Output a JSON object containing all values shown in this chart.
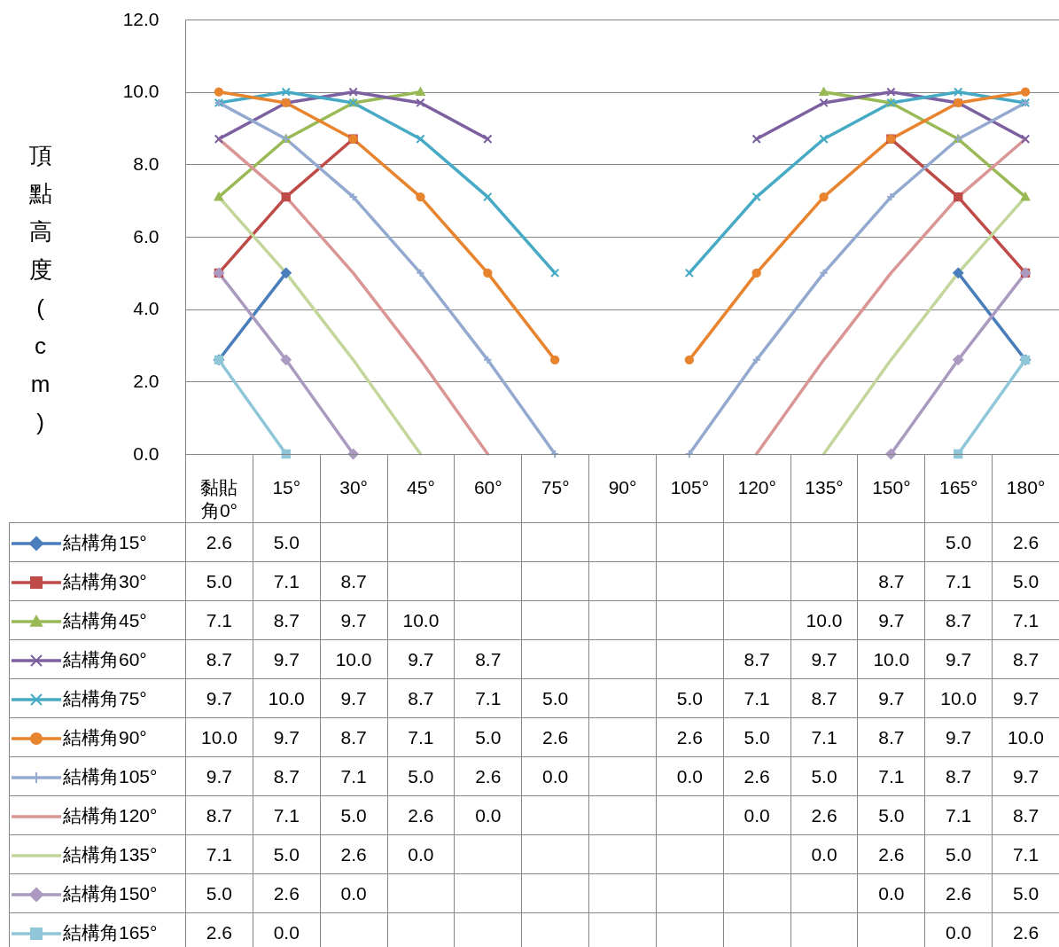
{
  "chart_data": {
    "type": "line",
    "ylabel": "頂點高度(cm)",
    "categories": [
      "黏貼角0°",
      "15°",
      "30°",
      "45°",
      "60°",
      "75°",
      "90°",
      "105°",
      "120°",
      "135°",
      "150°",
      "165°",
      "180°"
    ],
    "ylim": [
      0,
      12
    ],
    "yticks": [
      {
        "value": 0,
        "label": "0.0"
      },
      {
        "value": 2,
        "label": "2.0"
      },
      {
        "value": 4,
        "label": "4.0"
      },
      {
        "value": 6,
        "label": "6.0"
      },
      {
        "value": 8,
        "label": "8.0"
      },
      {
        "value": 10,
        "label": "10.0"
      },
      {
        "value": 12,
        "label": "12.0"
      }
    ],
    "grid": "y",
    "legend": "bottom left",
    "series": [
      {
        "name": "結構角15°",
        "color": "#4a7ebb",
        "marker": "diamond",
        "values": [
          2.6,
          5.0,
          null,
          null,
          null,
          null,
          null,
          null,
          null,
          null,
          null,
          5.0,
          2.6
        ],
        "value_labels": [
          "2.6",
          "5.0",
          null,
          null,
          null,
          null,
          null,
          null,
          null,
          null,
          null,
          "5.0",
          "2.6"
        ]
      },
      {
        "name": "結構角30°",
        "color": "#be4b48",
        "marker": "square",
        "values": [
          5.0,
          7.1,
          8.7,
          null,
          null,
          null,
          null,
          null,
          null,
          null,
          8.7,
          7.1,
          5.0
        ],
        "value_labels": [
          "5.0",
          "7.1",
          "8.7",
          null,
          null,
          null,
          null,
          null,
          null,
          null,
          "8.7",
          "7.1",
          "5.0"
        ]
      },
      {
        "name": "結構角45°",
        "color": "#98b954",
        "marker": "triangle",
        "values": [
          7.1,
          8.7,
          9.7,
          10.0,
          null,
          null,
          null,
          null,
          null,
          10.0,
          9.7,
          8.7,
          7.1
        ],
        "value_labels": [
          "7.1",
          "8.7",
          "9.7",
          "10.0",
          null,
          null,
          null,
          null,
          null,
          "10.0",
          "9.7",
          "8.7",
          "7.1"
        ]
      },
      {
        "name": "結構角60°",
        "color": "#7d60a0",
        "marker": "cross",
        "values": [
          8.7,
          9.7,
          10.0,
          9.7,
          8.7,
          null,
          null,
          null,
          8.7,
          9.7,
          10.0,
          9.7,
          8.7
        ],
        "value_labels": [
          "8.7",
          "9.7",
          "10.0",
          "9.7",
          "8.7",
          null,
          null,
          null,
          "8.7",
          "9.7",
          "10.0",
          "9.7",
          "8.7"
        ]
      },
      {
        "name": "結構角75°",
        "color": "#46aac5",
        "marker": "cross",
        "values": [
          9.7,
          10.0,
          9.7,
          8.7,
          7.1,
          5.0,
          null,
          5.0,
          7.1,
          8.7,
          9.7,
          10.0,
          9.7
        ],
        "value_labels": [
          "9.7",
          "10.0",
          "9.7",
          "8.7",
          "7.1",
          "5.0",
          null,
          "5.0",
          "7.1",
          "8.7",
          "9.7",
          "10.0",
          "9.7"
        ]
      },
      {
        "name": "結構角90°",
        "color": "#e8832e",
        "marker": "circle",
        "values": [
          10.0,
          9.7,
          8.7,
          7.1,
          5.0,
          2.6,
          null,
          2.6,
          5.0,
          7.1,
          8.7,
          9.7,
          10.0
        ],
        "value_labels": [
          "10.0",
          "9.7",
          "8.7",
          "7.1",
          "5.0",
          "2.6",
          null,
          "2.6",
          "5.0",
          "7.1",
          "8.7",
          "9.7",
          "10.0"
        ]
      },
      {
        "name": "結構角105°",
        "color": "#93a9cf",
        "marker": "plus",
        "values": [
          9.7,
          8.7,
          7.1,
          5.0,
          2.6,
          0.0,
          null,
          0.0,
          2.6,
          5.0,
          7.1,
          8.7,
          9.7
        ],
        "value_labels": [
          "9.7",
          "8.7",
          "7.1",
          "5.0",
          "2.6",
          "0.0",
          null,
          "0.0",
          "2.6",
          "5.0",
          "7.1",
          "8.7",
          "9.7"
        ]
      },
      {
        "name": "結構角120°",
        "color": "#d99694",
        "marker": "none",
        "values": [
          8.7,
          7.1,
          5.0,
          2.6,
          0.0,
          null,
          null,
          null,
          0.0,
          2.6,
          5.0,
          7.1,
          8.7
        ],
        "value_labels": [
          "8.7",
          "7.1",
          "5.0",
          "2.6",
          "0.0",
          null,
          null,
          null,
          "0.0",
          "2.6",
          "5.0",
          "7.1",
          "8.7"
        ]
      },
      {
        "name": "結構角135°",
        "color": "#c3d69b",
        "marker": "none",
        "values": [
          7.1,
          5.0,
          2.6,
          0.0,
          null,
          null,
          null,
          null,
          null,
          0.0,
          2.6,
          5.0,
          7.1
        ],
        "value_labels": [
          "7.1",
          "5.0",
          "2.6",
          "0.0",
          null,
          null,
          null,
          null,
          null,
          "0.0",
          "2.6",
          "5.0",
          "7.1"
        ]
      },
      {
        "name": "結構角150°",
        "color": "#ab9ac0",
        "marker": "diamond",
        "values": [
          5.0,
          2.6,
          0.0,
          null,
          null,
          null,
          null,
          null,
          null,
          null,
          0.0,
          2.6,
          5.0
        ],
        "value_labels": [
          "5.0",
          "2.6",
          "0.0",
          null,
          null,
          null,
          null,
          null,
          null,
          null,
          "0.0",
          "2.6",
          "5.0"
        ]
      },
      {
        "name": "結構角165°",
        "color": "#8fc7d9",
        "marker": "square",
        "values": [
          2.6,
          0.0,
          null,
          null,
          null,
          null,
          null,
          null,
          null,
          null,
          null,
          0.0,
          2.6
        ],
        "value_labels": [
          "2.6",
          "0.0",
          null,
          null,
          null,
          null,
          null,
          null,
          null,
          null,
          null,
          "0.0",
          "2.6"
        ]
      }
    ]
  }
}
